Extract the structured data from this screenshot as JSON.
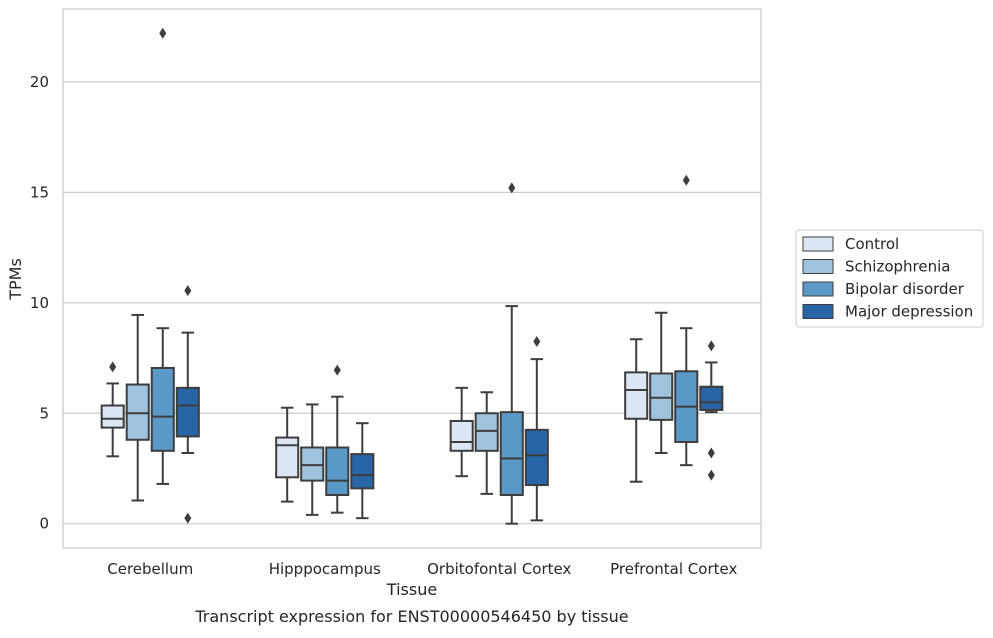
{
  "chart_data": {
    "type": "box",
    "title": "Transcript expression for ENST00000546450 by tissue",
    "xlabel": "Tissue",
    "ylabel": "TPMs",
    "categories": [
      "Cerebellum",
      "Hipppocampus",
      "Orbitofontal Cortex",
      "Prefrontal Cortex"
    ],
    "ylim": [
      -1.1,
      23.3
    ],
    "yticks": [
      0,
      5,
      10,
      15,
      20
    ],
    "grid": "horizontal",
    "legend_position": "right",
    "series": [
      {
        "name": "Control",
        "color": "#dbe7f4",
        "boxes": [
          {
            "whisker_low": 3.05,
            "q1": 4.35,
            "median": 4.75,
            "q3": 5.35,
            "whisker_high": 6.35,
            "outliers": [
              7.1
            ]
          },
          {
            "whisker_low": 1.0,
            "q1": 2.1,
            "median": 3.55,
            "q3": 3.9,
            "whisker_high": 5.25,
            "outliers": []
          },
          {
            "whisker_low": 2.15,
            "q1": 3.3,
            "median": 3.7,
            "q3": 4.65,
            "whisker_high": 6.15,
            "outliers": []
          },
          {
            "whisker_low": 1.9,
            "q1": 4.75,
            "median": 6.05,
            "q3": 6.85,
            "whisker_high": 8.35,
            "outliers": []
          }
        ]
      },
      {
        "name": "Schizophrenia",
        "color": "#a1c4de",
        "boxes": [
          {
            "whisker_low": 1.05,
            "q1": 3.8,
            "median": 5.0,
            "q3": 6.3,
            "whisker_high": 9.45,
            "outliers": []
          },
          {
            "whisker_low": 0.4,
            "q1": 1.95,
            "median": 2.65,
            "q3": 3.45,
            "whisker_high": 5.4,
            "outliers": []
          },
          {
            "whisker_low": 1.35,
            "q1": 3.3,
            "median": 4.2,
            "q3": 5.0,
            "whisker_high": 5.95,
            "outliers": []
          },
          {
            "whisker_low": 3.2,
            "q1": 4.7,
            "median": 5.7,
            "q3": 6.8,
            "whisker_high": 9.55,
            "outliers": []
          }
        ]
      },
      {
        "name": "Bipolar disorder",
        "color": "#5b9ac8",
        "boxes": [
          {
            "whisker_low": 1.8,
            "q1": 3.3,
            "median": 4.85,
            "q3": 7.05,
            "whisker_high": 8.85,
            "outliers": [
              22.2
            ]
          },
          {
            "whisker_low": 0.5,
            "q1": 1.3,
            "median": 1.95,
            "q3": 3.45,
            "whisker_high": 5.75,
            "outliers": [
              6.95
            ]
          },
          {
            "whisker_low": 0.0,
            "q1": 1.3,
            "median": 2.95,
            "q3": 5.05,
            "whisker_high": 9.85,
            "outliers": [
              15.2
            ]
          },
          {
            "whisker_low": 2.65,
            "q1": 3.7,
            "median": 5.3,
            "q3": 6.9,
            "whisker_high": 8.85,
            "outliers": [
              15.55
            ]
          }
        ]
      },
      {
        "name": "Major depression",
        "color": "#2865a6",
        "boxes": [
          {
            "whisker_low": 3.2,
            "q1": 3.95,
            "median": 5.35,
            "q3": 6.15,
            "whisker_high": 8.65,
            "outliers": [
              10.55,
              0.25
            ]
          },
          {
            "whisker_low": 0.25,
            "q1": 1.6,
            "median": 2.2,
            "q3": 3.15,
            "whisker_high": 4.55,
            "outliers": []
          },
          {
            "whisker_low": 0.15,
            "q1": 1.75,
            "median": 3.1,
            "q3": 4.25,
            "whisker_high": 7.45,
            "outliers": [
              8.25
            ]
          },
          {
            "whisker_low": 5.05,
            "q1": 5.15,
            "median": 5.5,
            "q3": 6.2,
            "whisker_high": 7.3,
            "outliers": [
              8.05,
              3.2,
              2.2
            ]
          }
        ]
      }
    ]
  }
}
